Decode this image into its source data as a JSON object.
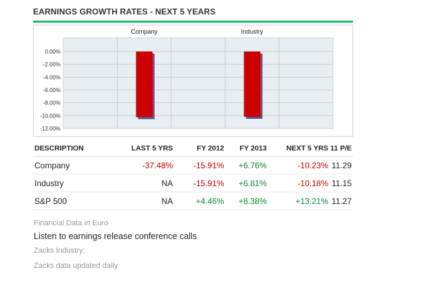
{
  "section_title": "EARNINGS GROWTH RATES - NEXT 5 YEARS",
  "colors": {
    "accent": "#1fb86e",
    "bar": "#cc0000",
    "bar_shadow": "#5a5a8a",
    "plot_bg": "#e9eef2",
    "neg_text": "#cc0000",
    "pos_text": "#0a8a2e"
  },
  "chart_data": {
    "type": "bar",
    "categories": [
      "Company",
      "Industry"
    ],
    "values": [
      -10.23,
      -10.18
    ],
    "ylim": [
      -12,
      0
    ],
    "yticks": [
      "0.00%",
      "-2.00%",
      "-4.00%",
      "-6.00%",
      "-8.00%",
      "-10.00%",
      "-12.00%"
    ],
    "ytick_values": [
      0,
      -2,
      -4,
      -6,
      -8,
      -10,
      -12
    ],
    "grid": true,
    "title": "",
    "xlabel": "",
    "ylabel": ""
  },
  "table": {
    "headers": [
      "DESCRIPTION",
      "LAST 5 YRS",
      "FY 2012",
      "FY 2013",
      "NEXT 5 YRS",
      "11 P/E"
    ],
    "rows": [
      {
        "cells": [
          "Company",
          "-37.48%",
          "-15.91%",
          "+6.76%",
          "-10.23%",
          "11.29"
        ]
      },
      {
        "cells": [
          "Industry",
          "NA",
          "-15.91%",
          "+6.81%",
          "-10.18%",
          "11.15"
        ]
      },
      {
        "cells": [
          "S&P 500",
          "NA",
          "+4.46%",
          "+8.38%",
          "+13.21%",
          "11.27"
        ]
      }
    ]
  },
  "footer": {
    "currency_note": "Financial Data in Euro",
    "calls_link": "Listen to earnings release conference calls",
    "zacks_industry": "Zacks Industry:",
    "updated_note": "Zacks data updated daily"
  }
}
